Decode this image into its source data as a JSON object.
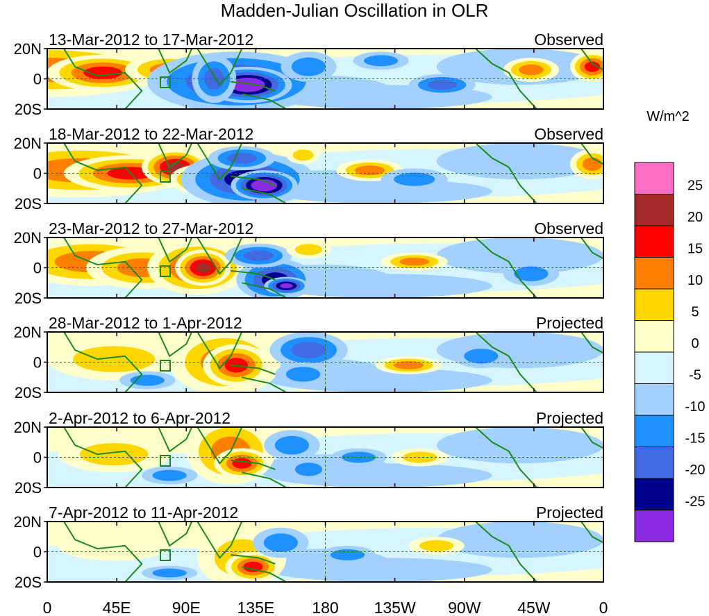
{
  "title": "Madden-Julian Oscillation in OLR",
  "colorbar": {
    "unit": "W/m^2",
    "tick_labels": [
      "25",
      "20",
      "15",
      "10",
      "5",
      "0",
      "-5",
      "-10",
      "-15",
      "-20",
      "-25"
    ],
    "colors": [
      "#ff6ec7",
      "#a52a2a",
      "#ff0000",
      "#ff7f00",
      "#ffd700",
      "#ffffcc",
      "#d6f5ff",
      "#a3d1ff",
      "#1f90ff",
      "#4169e1",
      "#00008b",
      "#8a2be2"
    ]
  },
  "axes": {
    "lat_labels": [
      "20N",
      "0",
      "20S"
    ],
    "lon_labels": [
      "0",
      "45E",
      "90E",
      "135E",
      "180",
      "135W",
      "90W",
      "45W",
      "0"
    ]
  },
  "panels": [
    {
      "period": "13-Mar-2012 to 17-Mar-2012",
      "type": "Observed"
    },
    {
      "period": "18-Mar-2012 to 22-Mar-2012",
      "type": "Observed"
    },
    {
      "period": "23-Mar-2012 to 27-Mar-2012",
      "type": "Observed"
    },
    {
      "period": "28-Mar-2012 to 1-Apr-2012",
      "type": "Projected"
    },
    {
      "period": "2-Apr-2012 to 6-Apr-2012",
      "type": "Projected"
    },
    {
      "period": "7-Apr-2012 to 11-Apr-2012",
      "type": "Projected"
    }
  ]
}
